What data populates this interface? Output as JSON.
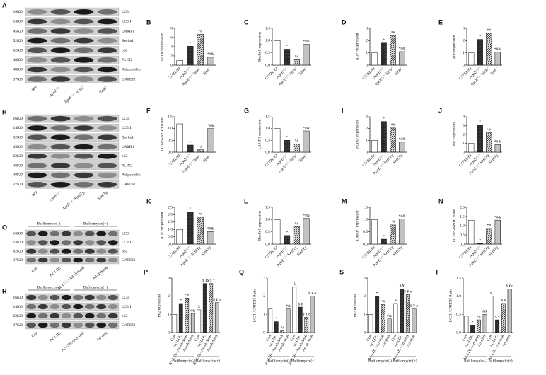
{
  "blots": [
    {
      "letter": "A",
      "kd": [
        "16KD",
        "14KD",
        "45KD",
        "52KD",
        "62KD",
        "48KD",
        "48KD",
        "37KD"
      ],
      "proteins": [
        "LC3I",
        "LC3II",
        "LAMP1",
        "Beclin1",
        "p62",
        "PLIN2",
        "Adipophilin",
        "GAPDH"
      ],
      "lanes": [
        "WT",
        "ApoE⁻/⁻",
        "ApoE⁻/⁻ Sirt6⁻",
        "Sirt6⁻"
      ]
    },
    {
      "letter": "H",
      "kd": [
        "16KD",
        "14KD",
        "52KD",
        "45KD",
        "62KD",
        "48KD",
        "48KD",
        "37KD"
      ],
      "proteins": [
        "LC3I",
        "LC3II",
        "Beclin1",
        "LAMP1",
        "p62",
        "PLIN2",
        "Adipophilin",
        "GAPDH"
      ],
      "lanes": [
        "WT",
        "ApoE⁻/⁻",
        "ApoE⁻/⁻ Sirt6Tg",
        "Sirt6Tg"
      ]
    },
    {
      "letter": "O",
      "groups": [
        "Bafilomycin(-)",
        "Bafilomycin(+)"
      ],
      "kd": [
        "16KD",
        "14KD",
        "62KD",
        "37KD"
      ],
      "proteins": [
        "LC3I",
        "LC3II",
        "p62",
        "GAPDH"
      ],
      "lanes": [
        "Con",
        "Ac-LDL",
        "Ac-LDL+Ad-sh-Sirt6",
        "Ad-sh-Sirt6"
      ]
    },
    {
      "letter": "R",
      "groups": [
        "Bafilomycin(-)",
        "Bafilomycin(+)"
      ],
      "kd": [
        "16KD",
        "14KD",
        "62KD",
        "37KD"
      ],
      "proteins": [
        "LC3I",
        "LC3II",
        "p62",
        "GAPDH"
      ],
      "lanes": [
        "Con",
        "Ac-LDL",
        "Ac-LDL+Ad-sirt6",
        "Ad-sirt6"
      ]
    }
  ],
  "chart_data": [
    {
      "type": "bar",
      "letter": "B",
      "ylabel": "PLIN2 expression",
      "categories": [
        "C57BL/6J",
        "ApoE⁻/⁻",
        "ApoE⁻/⁻ Sirt6⁻",
        "Sirt6⁻"
      ],
      "values": [
        1.0,
        4.1,
        6.7,
        1.7
      ],
      "annotations": [
        null,
        "*",
        "*#",
        "*#&"
      ],
      "ylim": [
        0,
        8
      ],
      "yticks": [
        0,
        2,
        4,
        6,
        8
      ]
    },
    {
      "type": "bar",
      "letter": "C",
      "ylabel": "Beclin1 expression",
      "categories": [
        "C57BL/6J",
        "ApoE⁻/⁻",
        "ApoE⁻/⁻ Sirt6⁻",
        "Sirt6⁻"
      ],
      "values": [
        1.0,
        0.65,
        0.22,
        0.85
      ],
      "annotations": [
        null,
        "*",
        "*#",
        "*#&"
      ],
      "ylim": [
        0,
        1.5
      ],
      "yticks": [
        {
          "value": 0,
          "label": "0.0"
        },
        0.5,
        {
          "value": 1,
          "label": "1.0"
        },
        1.5
      ]
    },
    {
      "type": "bar",
      "letter": "D",
      "ylabel": "ADFP expression",
      "categories": [
        "C57BL/6J",
        "ApoE⁻/⁻",
        "ApoE⁻/⁻ Sirt6⁻",
        "Sirt6⁻"
      ],
      "values": [
        1.0,
        1.8,
        2.4,
        1.1
      ],
      "annotations": [
        null,
        "*",
        "*#",
        "*#&"
      ],
      "ylim": [
        0,
        3
      ],
      "yticks": [
        0,
        1,
        2,
        3
      ]
    },
    {
      "type": "bar",
      "letter": "E",
      "ylabel": "p62 expression",
      "categories": [
        "C57BL/6J",
        "ApoE⁻/⁻",
        "ApoE⁻/⁻ Sirt6⁻",
        "Sirt6⁻"
      ],
      "values": [
        1.0,
        2.1,
        2.6,
        1.05
      ],
      "annotations": [
        null,
        "*",
        "*#",
        "*#&"
      ],
      "ylim": [
        0,
        3
      ],
      "yticks": [
        0,
        1,
        2,
        3
      ]
    },
    {
      "type": "bar",
      "letter": "F",
      "ylabel": "LC3II/GAPDH Ratio",
      "categories": [
        "C57BL/6J",
        "ApoE⁻/⁻",
        "ApoE⁻/⁻ Sirt6⁻",
        "Sirt6⁻"
      ],
      "values": [
        1.2,
        0.3,
        0.1,
        1.0
      ],
      "annotations": [
        null,
        "*",
        "*#",
        "*#&"
      ],
      "ylim": [
        0,
        1.5
      ],
      "yticks": [
        {
          "value": 0,
          "label": "0.0"
        },
        0.5,
        {
          "value": 1,
          "label": "1.0"
        },
        1.5
      ]
    },
    {
      "type": "bar",
      "letter": "G",
      "ylabel": "LAMP1 expression",
      "categories": [
        "C57BL/6J",
        "ApoE⁻/⁻",
        "ApoE⁻/⁻ Sirt6⁻",
        "Sirt6⁻"
      ],
      "values": [
        1.0,
        0.5,
        0.35,
        0.9
      ],
      "annotations": [
        null,
        "*",
        "*#",
        "*#&"
      ],
      "ylim": [
        0,
        1.5
      ],
      "yticks": [
        {
          "value": 0,
          "label": "0.0"
        },
        0.5,
        {
          "value": 1,
          "label": "1.0"
        },
        1.5
      ]
    },
    {
      "type": "bar",
      "letter": "I",
      "ylabel": "PLIN2 expression",
      "categories": [
        "C57BL/6J",
        "ApoE⁻/⁻",
        "ApoE⁻/⁻ Sirt6Tg",
        "Sirt6Tg"
      ],
      "values": [
        1.0,
        2.6,
        2.05,
        0.85
      ],
      "annotations": [
        null,
        "*",
        "*#",
        "*#&"
      ],
      "ylim": [
        0,
        3
      ],
      "yticks": [
        0,
        1,
        2,
        3
      ]
    },
    {
      "type": "bar",
      "letter": "J",
      "ylabel": "P62 expression",
      "categories": [
        "C57BL/6J",
        "ApoE⁻/⁻",
        "ApoE⁻/⁻ Sirt6Tg",
        "Sirt6Tg"
      ],
      "values": [
        1.0,
        3.1,
        2.2,
        0.85
      ],
      "annotations": [
        null,
        "*",
        "*#",
        "*#&"
      ],
      "ylim": [
        0,
        4
      ],
      "yticks": [
        0,
        1,
        2,
        3,
        4
      ]
    },
    {
      "type": "bar",
      "letter": "K",
      "ylabel": "ADFP expression",
      "categories": [
        "C57BL/6J",
        "ApoE⁻/⁻",
        "ApoE⁻/⁻ Sirt6Tg",
        "Sirt6Tg"
      ],
      "values": [
        1.0,
        2.2,
        1.85,
        0.85
      ],
      "annotations": [
        null,
        "*",
        "*#",
        "*#&"
      ],
      "ylim": [
        0,
        2.5
      ],
      "yticks": [
        {
          "value": 0,
          "label": "0.0"
        },
        0.5,
        {
          "value": 1,
          "label": "1.0"
        },
        1.5,
        {
          "value": 2,
          "label": "2.0"
        },
        2.5
      ]
    },
    {
      "type": "bar",
      "letter": "L",
      "ylabel": "Beclin1 expression",
      "categories": [
        "C57BL/6J",
        "ApoE⁻/⁻",
        "ApoE⁻/⁻ Sirt6Tg",
        "Sirt6Tg"
      ],
      "values": [
        1.0,
        0.35,
        0.72,
        1.05
      ],
      "annotations": [
        null,
        "*",
        "*#",
        "*#&"
      ],
      "ylim": [
        0,
        1.5
      ],
      "yticks": [
        {
          "value": 0,
          "label": "0.0"
        },
        0.5,
        {
          "value": 1,
          "label": "1.0"
        },
        1.5
      ]
    },
    {
      "type": "bar",
      "letter": "M",
      "ylabel": "LAMP1 expression",
      "categories": [
        "C57BL/6J",
        "ApoE⁻/⁻",
        "ApoE⁻/⁻ Sirt6Tg",
        "Sirt6Tg"
      ],
      "values": [
        1.0,
        0.2,
        0.78,
        1.02
      ],
      "annotations": [
        null,
        "*",
        "*#",
        "*#&"
      ],
      "ylim": [
        0,
        1.5
      ],
      "yticks": [
        {
          "value": 0,
          "label": "0.0"
        },
        0.5,
        {
          "value": 1,
          "label": "1.0"
        },
        1.5
      ]
    },
    {
      "type": "bar",
      "letter": "N",
      "ylabel": "LC3II/GAPDH Ratio",
      "categories": [
        "C57BL/6J",
        "ApoE⁻/⁻",
        "ApoE⁻/⁻ Sirt6Tg",
        "Sirt6Tg"
      ],
      "values": [
        1.3,
        0.05,
        0.85,
        1.3
      ],
      "annotations": [
        null,
        "*",
        "*#",
        "*#&"
      ],
      "ylim": [
        0,
        2
      ],
      "yticks": [
        {
          "value": 0,
          "label": "0.0"
        },
        0.5,
        {
          "value": 1,
          "label": "1.0"
        },
        1.5,
        {
          "value": 2,
          "label": "2.0"
        }
      ]
    },
    {
      "type": "bar",
      "letter": "P",
      "ylabel": "P62 expression",
      "groups": [
        "Bafilomycin(-)",
        "Bafilomycin(+)"
      ],
      "categories": [
        "Con",
        "Ac-LDL",
        "Ac-LDL+Ad-sh-Sirt6",
        "Ad-sh-Sirt6",
        "Con",
        "Ac-LDL",
        "Ac-LDL+Ad-sh-Sirt6",
        "Ad-sh-Sirt6"
      ],
      "values": [
        1.0,
        1.6,
        1.9,
        1.05,
        1.25,
        2.7,
        2.7,
        1.65
      ],
      "annotations": [
        null,
        "*",
        "*#",
        "#&",
        "$",
        "$ ¥",
        "$ ¥ †",
        "$ ¥ σ"
      ],
      "ylim": [
        0,
        3
      ],
      "yticks": [
        0,
        1,
        2,
        3
      ]
    },
    {
      "type": "bar",
      "letter": "Q",
      "ylabel": "LC3II/GAPDH Ratio",
      "groups": [
        "Bafilomycin(-)",
        "Bafilomycin(+)"
      ],
      "categories": [
        "Con",
        "Ac-LDL",
        "Ac-LDL+Ad-sh-Sirt6",
        "Ad-sh-Sirt6",
        "Con",
        "Ac-LDL",
        "Ac-LDL+Ad-sh-Sirt6",
        "Ad-sh-Sirt6"
      ],
      "values": [
        1.3,
        0.6,
        0.1,
        1.3,
        2.5,
        1.4,
        0.85,
        2.0
      ],
      "annotations": [
        null,
        "*",
        "*#",
        "#&",
        "$",
        "$ ¥",
        "$ ¥ σ",
        "$ ¥ σ"
      ],
      "ylim": [
        0,
        3
      ],
      "yticks": [
        0,
        1,
        2,
        3
      ]
    },
    {
      "type": "bar",
      "letter": "S",
      "ylabel": "P62 expression",
      "groups": [
        "Bafilomycin(-)",
        "Bafilomycin(+)"
      ],
      "categories": [
        "Con",
        "Ac-LDL",
        "Ac-LDL+Ad-sirt6",
        "Ad-sirt6",
        "Con",
        "Ac-LDL",
        "Ac-LDL+Ad-sirt6",
        "Ad-sirt6"
      ],
      "values": [
        1.0,
        2.0,
        1.55,
        0.75,
        1.6,
        2.4,
        2.1,
        1.3
      ],
      "annotations": [
        null,
        "*",
        "*#",
        "#&",
        "$",
        "$ ¥",
        "$ ¥ σ",
        "$ ¥ σ"
      ],
      "ylim": [
        0,
        3
      ],
      "yticks": [
        0,
        1,
        2,
        3
      ]
    },
    {
      "type": "bar",
      "letter": "T",
      "ylabel": "LC3II/GAPDH Ratio",
      "groups": [
        "Bafilomycin(-)",
        "Bafilomycin(+)"
      ],
      "categories": [
        "Con",
        "Ac-LDL",
        "Ac-LDL+Ad-sirt6",
        "Ad-sirt6",
        "Con",
        "Ac-LDL",
        "Ac-LDL+Ad-sirt6",
        "Ad-sirt6"
      ],
      "values": [
        0.45,
        0.2,
        0.35,
        0.5,
        1.0,
        0.35,
        0.8,
        1.2
      ],
      "annotations": [
        null,
        "*",
        "*#",
        "#&",
        "$",
        "$ ¥",
        "$ ¥",
        "$ ¥ σ"
      ],
      "ylim": [
        0,
        1.5
      ],
      "yticks": [
        {
          "value": 0,
          "label": "0.0"
        },
        0.5,
        {
          "value": 1,
          "label": "1.0"
        },
        1.5
      ]
    }
  ]
}
